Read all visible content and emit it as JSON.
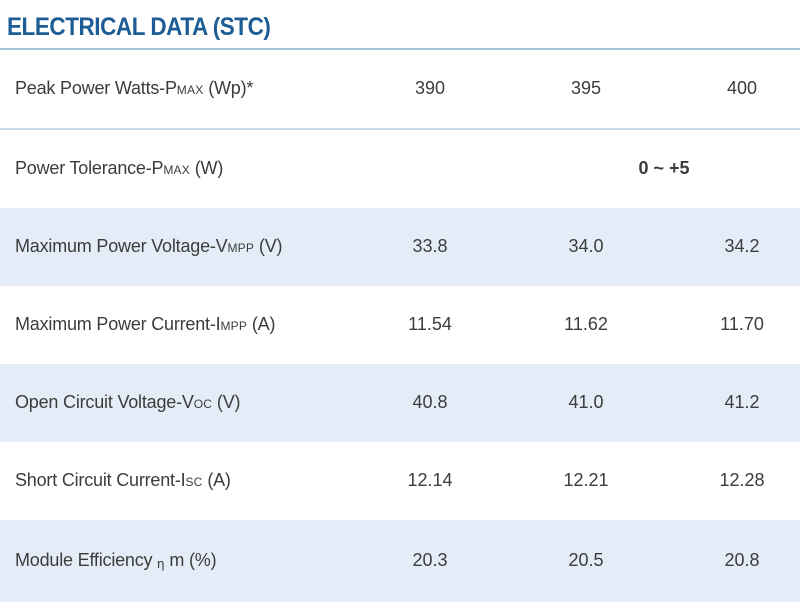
{
  "page": {
    "title": "ELECTRICAL DATA (STC)"
  },
  "colors": {
    "title-blue": "#1e5c96",
    "rule-blue": "#a9c6d9",
    "separator-blue": "#c3d9e8",
    "row-alt-bg": "#e4edf7",
    "text-color": "#3c3c3b"
  },
  "table": {
    "columns": 3,
    "rows": [
      {
        "label": {
          "p1": "Peak Power Watts-P",
          "sub": "MAX",
          "p2": " (Wp)*"
        },
        "values": [
          "390",
          "395",
          "400"
        ]
      },
      {
        "label": {
          "p1": "Power Tolerance-P",
          "sub": "MAX",
          "p2": " (W)"
        },
        "span_value": "0 ~ +5"
      },
      {
        "label": {
          "p1": "Maximum Power Voltage-V",
          "sub": "MPP",
          "p2": " (V)"
        },
        "values": [
          "33.8",
          "34.0",
          "34.2"
        ]
      },
      {
        "label": {
          "p1": "Maximum Power Current-I",
          "sub": "MPP",
          "p2": " (A)"
        },
        "values": [
          "11.54",
          "11.62",
          "11.70"
        ]
      },
      {
        "label": {
          "p1": "Open Circuit Voltage-V",
          "sub": "OC",
          "p2": " (V)"
        },
        "values": [
          "40.8",
          "41.0",
          "41.2"
        ]
      },
      {
        "label": {
          "p1": "Short Circuit Current-I",
          "sub": "SC",
          "p2": " (A)"
        },
        "values": [
          "12.14",
          "12.21",
          "12.28"
        ]
      },
      {
        "label": {
          "p1": "Module Efficiency ",
          "sub": "η",
          "p2": " m (%)"
        },
        "values": [
          "20.3",
          "20.5",
          "20.8"
        ]
      }
    ]
  }
}
